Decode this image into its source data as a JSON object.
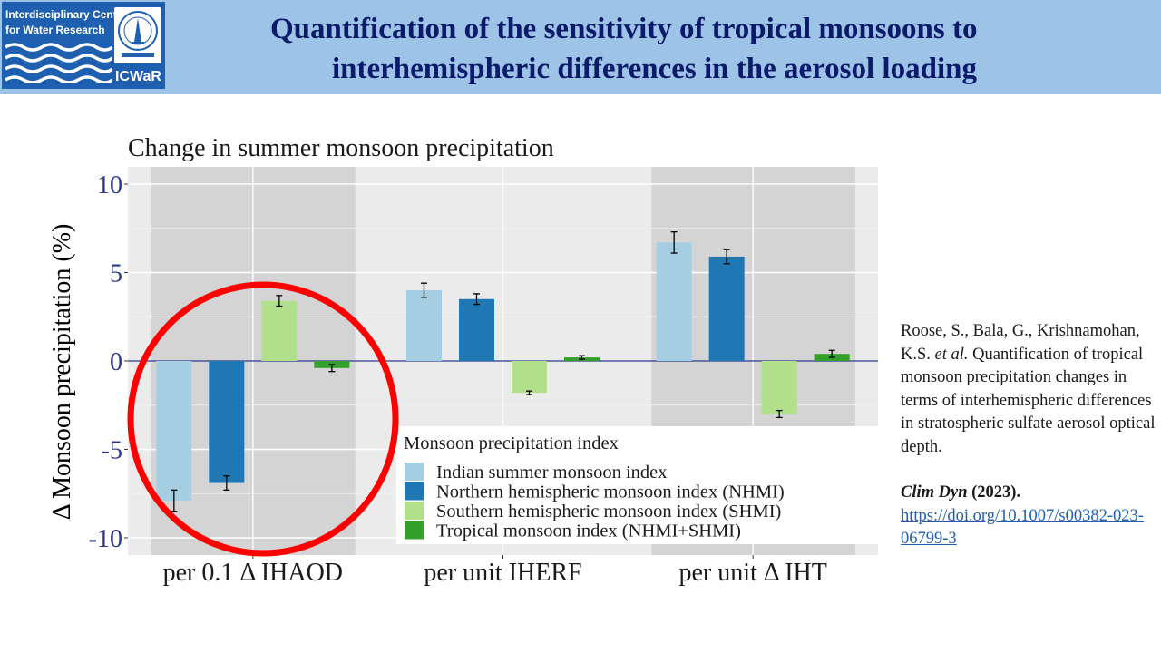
{
  "header": {
    "logo_line1": "Interdisciplinary Centre",
    "logo_line2": "for Water Research",
    "logo_name": "ICWaR",
    "title_line1": "Quantification of the sensitivity of tropical monsoons to",
    "title_line2": "interhemispheric differences in the aerosol loading"
  },
  "colors": {
    "header_bg": "#9dc3e6",
    "title": "#0c1a6b",
    "ismi": "#a6cee3",
    "nhmi": "#1f78b4",
    "shmi": "#b2df8a",
    "tmi": "#33a02c",
    "highlight_circle": "#ff0000"
  },
  "chart_data": {
    "type": "bar",
    "title": "Change in summer monsoon precipitation",
    "ylabel": "Δ Monsoon precipitation (%)",
    "xlabel": "",
    "ylim": [
      -11,
      11
    ],
    "yticks": [
      10,
      5,
      0,
      -5,
      -10
    ],
    "ytick_labels": [
      "10",
      "5",
      "0",
      "-5",
      "-10"
    ],
    "categories": [
      "per 0.1 Δ IHAOD",
      "per unit IHERF",
      "per unit Δ IHT"
    ],
    "legend_title": "Monsoon precipitation index",
    "legend_position": "bottom-right",
    "series": [
      {
        "name": "Indian summer monsoon index",
        "values": [
          -7.9,
          4.0,
          6.7
        ],
        "errors": [
          0.6,
          0.4,
          0.6
        ]
      },
      {
        "name": "Northern hemispheric monsoon index (NHMI)",
        "values": [
          -6.9,
          3.5,
          5.9
        ],
        "errors": [
          0.4,
          0.3,
          0.4
        ]
      },
      {
        "name": "Southern hemispheric monsoon index (SHMI)",
        "values": [
          3.4,
          -1.8,
          -3.0
        ],
        "errors": [
          0.3,
          0.1,
          0.2
        ]
      },
      {
        "name": "Tropical monsoon index (NHMI+SHMI)",
        "values": [
          -0.4,
          0.2,
          0.4
        ],
        "errors": [
          0.2,
          0.1,
          0.2
        ]
      }
    ],
    "shaded_groups": [
      0,
      2
    ],
    "annotation": "red circle around per 0.1 Δ IHAOD group"
  },
  "citation": {
    "authors": "Roose, S., Bala, G., Krishnamohan, K.S.",
    "et_al": "et al.",
    "text": "Quantification of tropical monsoon precipitation changes in terms of interhemispheric differences in stratospheric sulfate aerosol optical depth.",
    "journal": "Clim Dyn",
    "year": "(2023).",
    "url": "https://doi.org/10.1007/s00382-023-06799-3"
  }
}
